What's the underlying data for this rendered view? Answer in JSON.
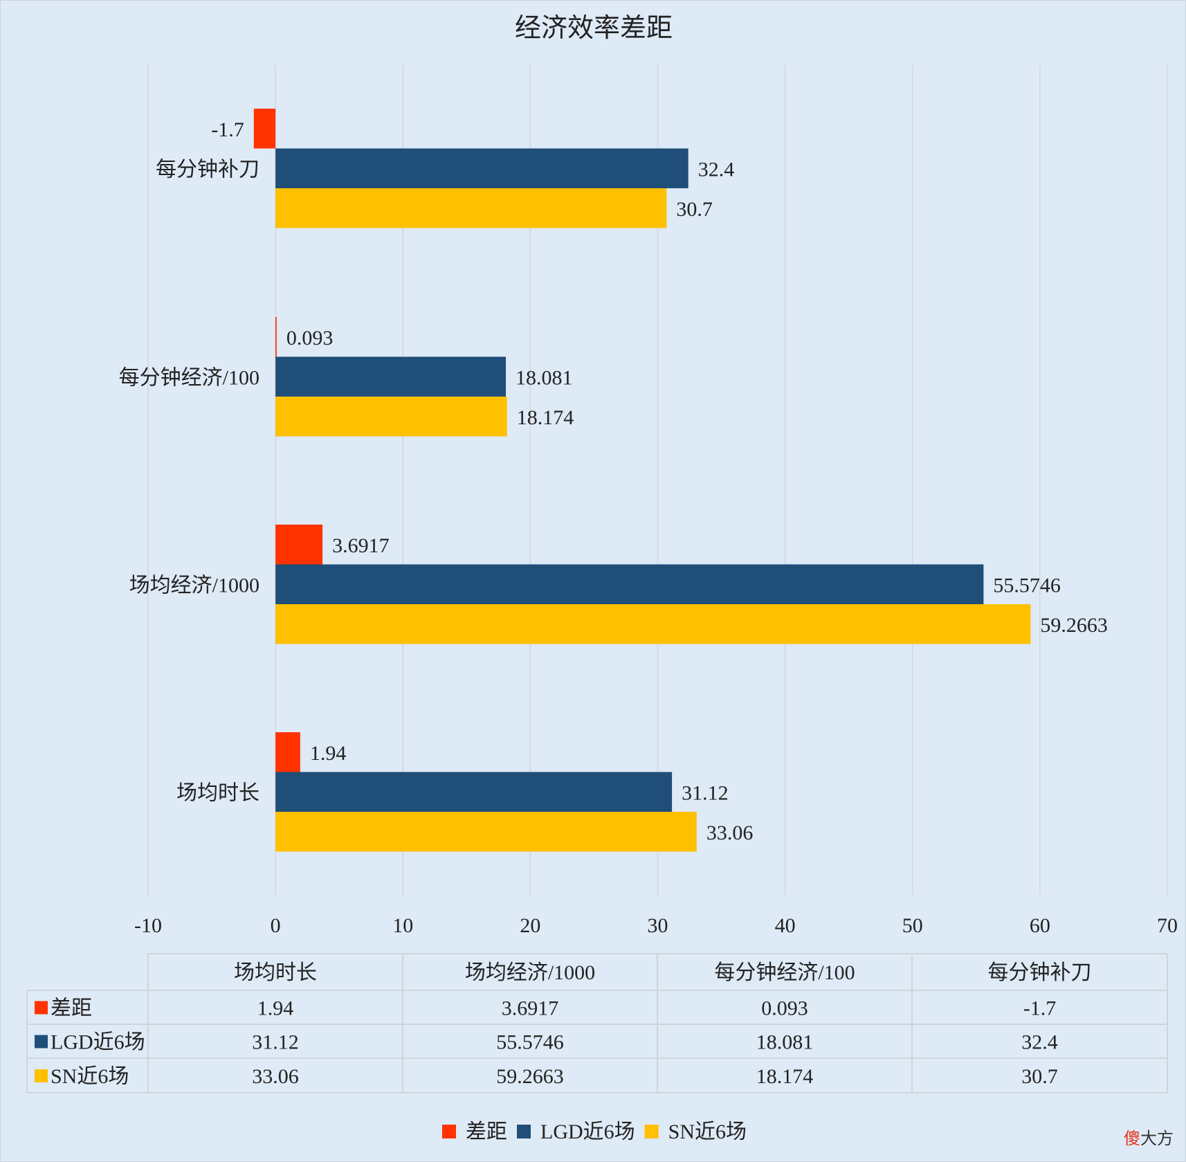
{
  "chart_data": {
    "type": "bar",
    "orientation": "horizontal",
    "title": "经济效率差距",
    "categories": [
      "场均时长",
      "场均经济/1000",
      "每分钟经济/100",
      "每分钟补刀"
    ],
    "series": [
      {
        "name": "差距",
        "color": "#ff3300",
        "values": [
          1.94,
          3.6917,
          0.093,
          -1.7
        ]
      },
      {
        "name": "LGD近6场",
        "color": "#1f4e79",
        "values": [
          31.12,
          55.5746,
          18.081,
          32.4
        ]
      },
      {
        "name": "SN近6场",
        "color": "#ffc000",
        "values": [
          33.06,
          59.2663,
          18.174,
          30.7
        ]
      }
    ],
    "value_labels": [
      [
        "1.94",
        "3.6917",
        "0.093",
        "-1.7"
      ],
      [
        "31.12",
        "55.5746",
        "18.081",
        "32.4"
      ],
      [
        "33.06",
        "59.2663",
        "18.174",
        "30.7"
      ]
    ],
    "xlim": [
      -10,
      70
    ],
    "xticks": [
      "-10",
      "0",
      "10",
      "20",
      "30",
      "40",
      "50",
      "60",
      "70"
    ],
    "grid": true,
    "legend": "bottom",
    "data_table": true
  },
  "watermark": [
    "傻",
    "大方"
  ]
}
